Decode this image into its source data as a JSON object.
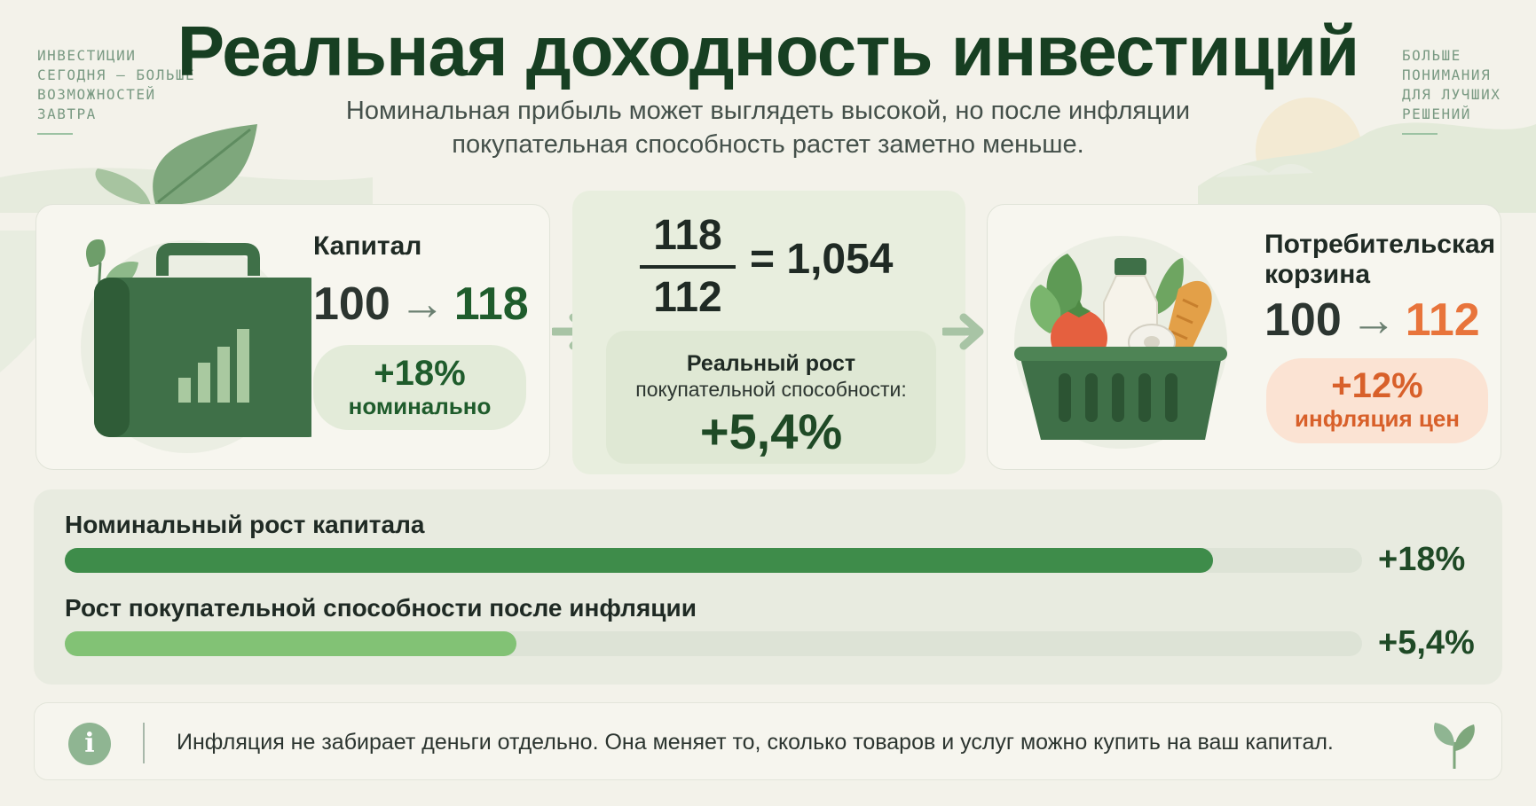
{
  "header": {
    "title": "Реальная доходность инвестиций",
    "subtitle_line1": "Номинальная прибыль может выглядеть высокой, но после инфляции",
    "subtitle_line2": "покупательная способность растет заметно меньше.",
    "note_left": "Инвестиции сегодня — больше возможностей завтра",
    "note_right": "Больше понимания для лучших решений"
  },
  "capital": {
    "title": "Капитал",
    "from": "100",
    "arrow": "→",
    "to": "118",
    "change": "+18%",
    "change_label": "номинально",
    "icon": "briefcase-chart-icon"
  },
  "calculation": {
    "numerator": "118",
    "denominator": "112",
    "equals": "=",
    "result": "1,054",
    "label_line1": "Реальный рост",
    "label_line2": "покупательной способности:",
    "value": "+5,4%"
  },
  "basket": {
    "title_line1": "Потребительская",
    "title_line2": "корзина",
    "from": "100",
    "arrow": "→",
    "to": "112",
    "change": "+12%",
    "change_label": "инфляция цен",
    "icon": "grocery-basket-icon"
  },
  "bars": [
    {
      "label": "Номинальный рост капитала",
      "value_text": "+18%",
      "fill_fraction": 0.885,
      "color": "#3e8c4a"
    },
    {
      "label": "Рост покупательной способности после инфляции",
      "value_text": "+5,4%",
      "fill_fraction": 0.348,
      "color": "#82c275"
    }
  ],
  "note": {
    "icon": "info-icon",
    "text": "Инфляция не забирает деньги отдельно. Она меняет то, сколько товаров и услуг можно купить на ваш капитал."
  },
  "colors": {
    "primary_green": "#173f22",
    "accent_green": "#3e8c4a",
    "light_green": "#82c275",
    "inflation_orange": "#e8743b",
    "background": "#f3f2ea"
  }
}
